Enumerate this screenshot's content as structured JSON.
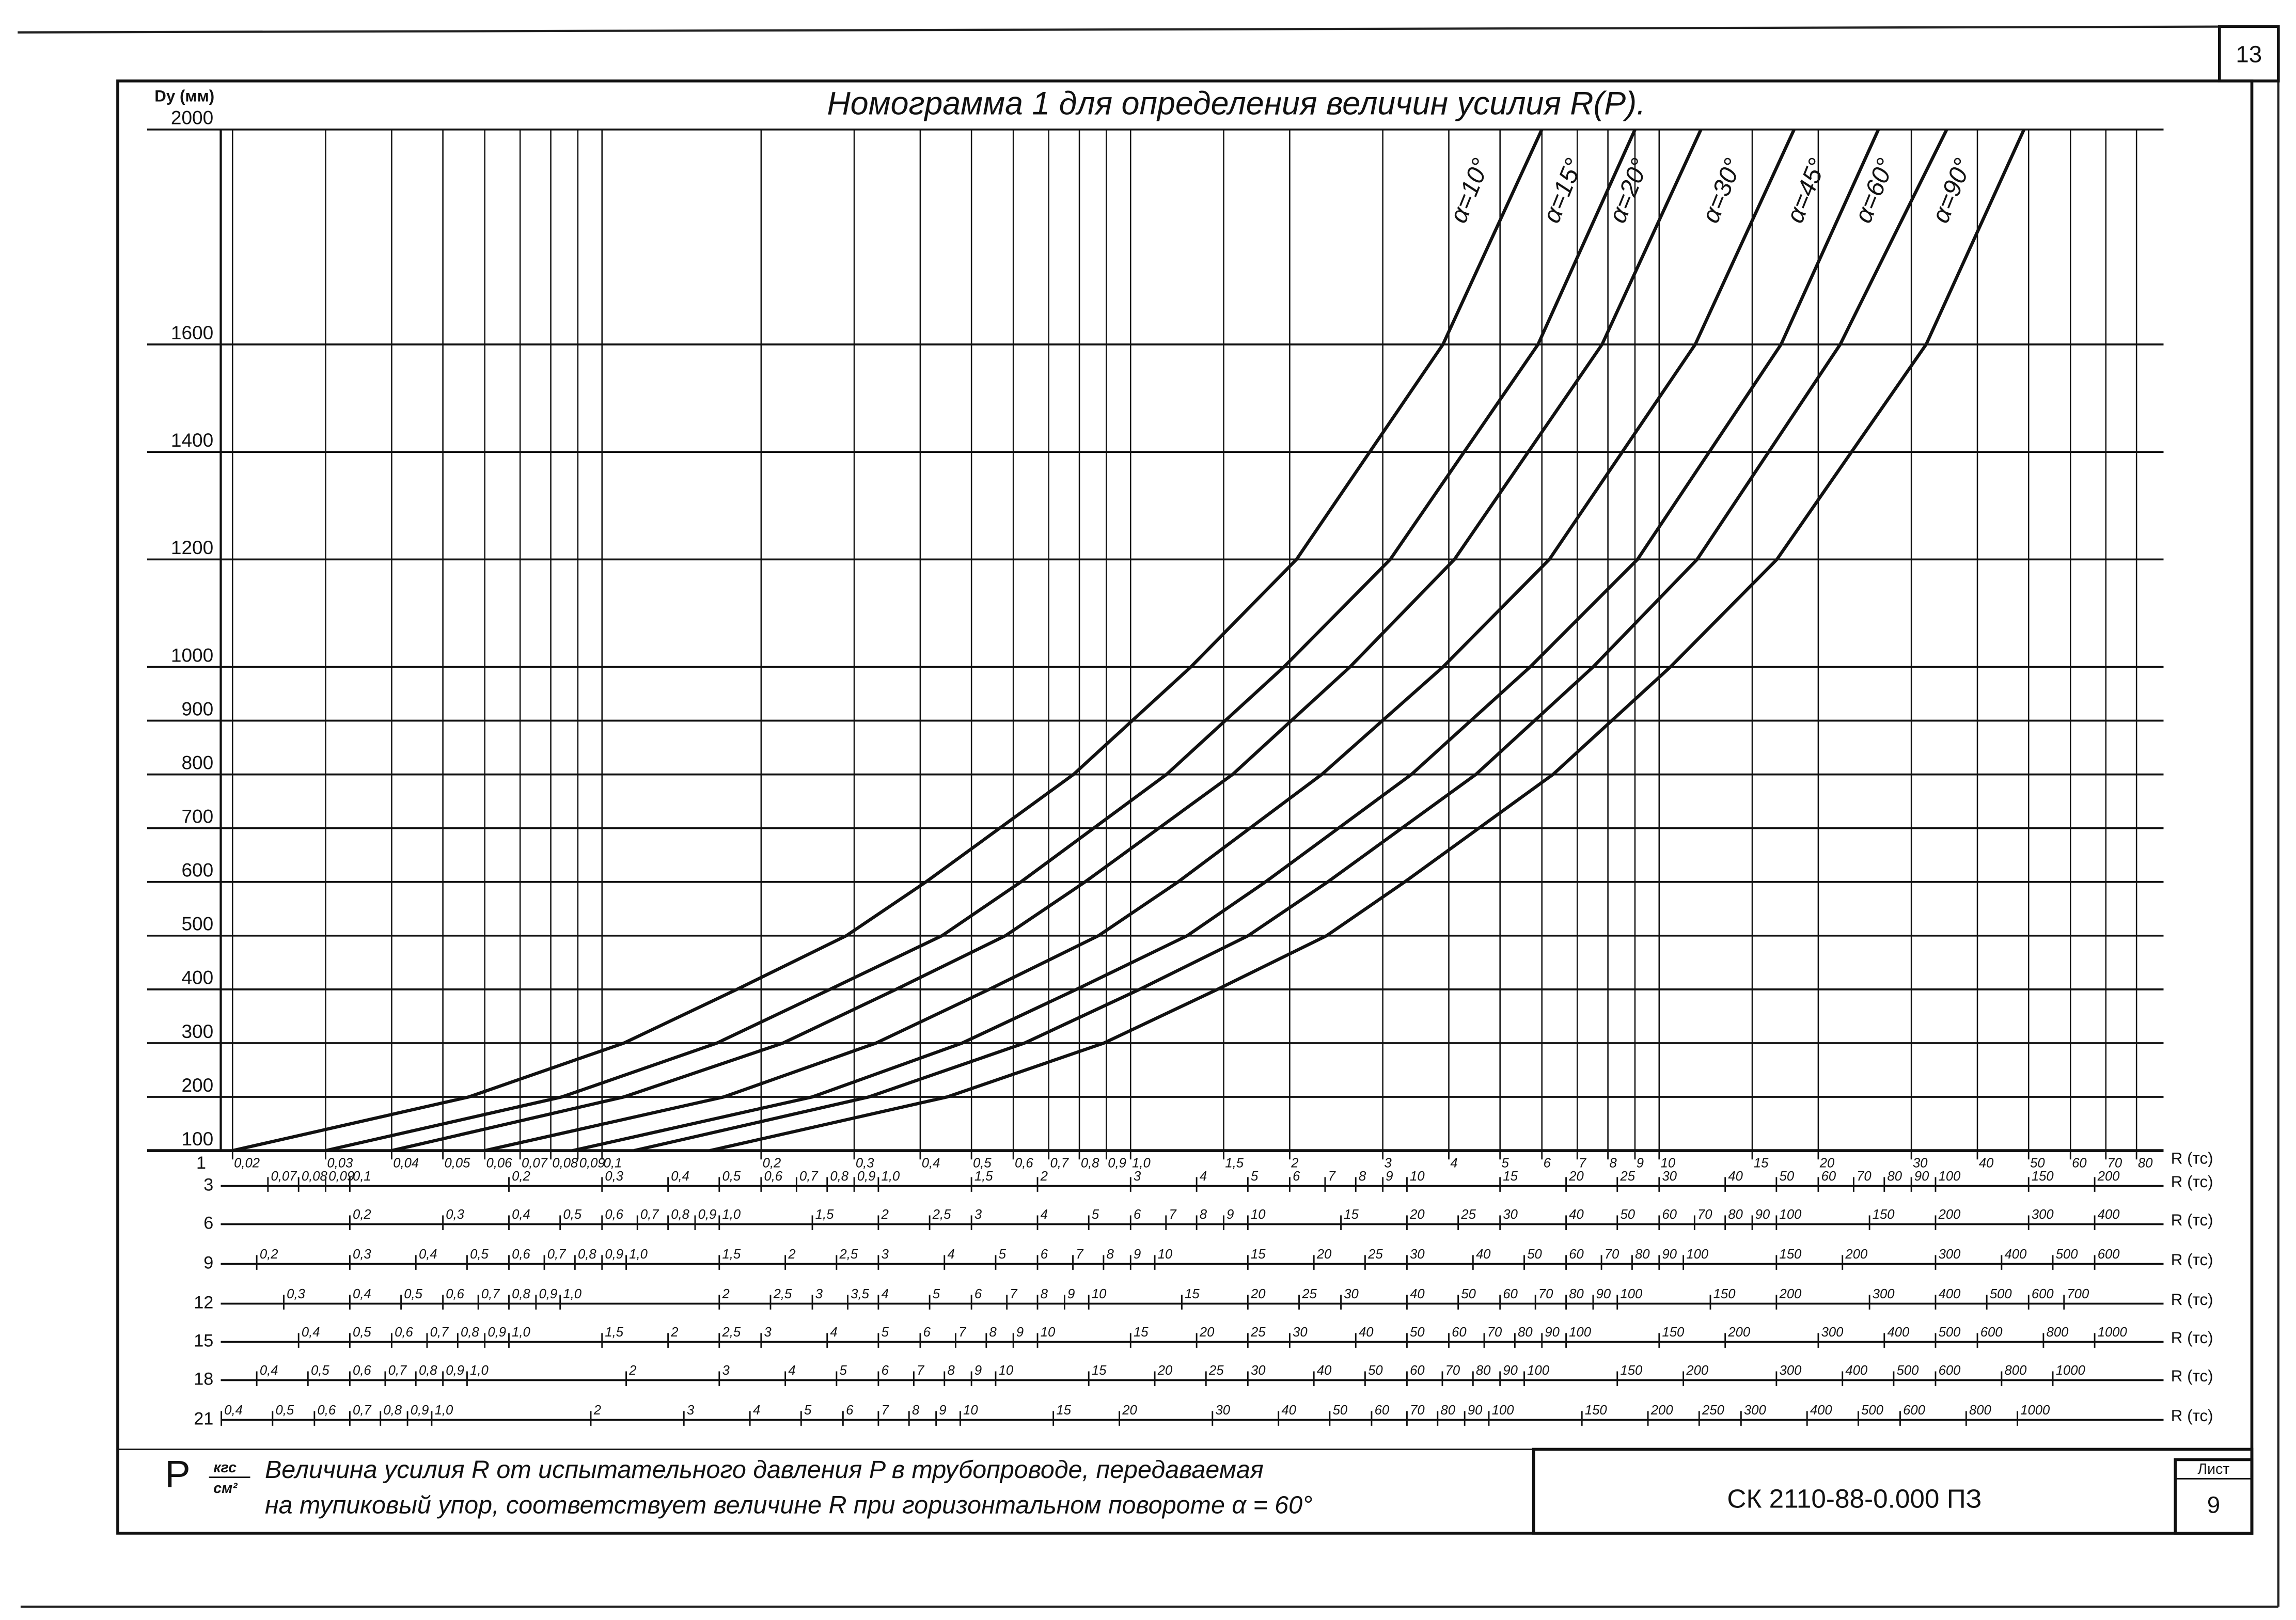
{
  "page_number": 13,
  "stamp": {
    "code": "СК 2110-88-0.000 ПЗ",
    "sheet_label": "Лист",
    "sheet": 9
  },
  "chart_data": {
    "type": "line",
    "title": "Номограмма 1 для определения величин усилия R(P).",
    "y_label": "Dy (мм)",
    "ylim": [
      100,
      2000
    ],
    "yticks": [
      100,
      200,
      300,
      400,
      500,
      600,
      700,
      800,
      900,
      1000,
      1200,
      1400,
      1600,
      2000
    ],
    "xscale": "log",
    "xlim": [
      0.019,
      90
    ],
    "grid": true,
    "color": "#111111",
    "x_pressure": 1,
    "xticks": [
      {
        "value": 0.02,
        "label": "0,02"
      },
      {
        "value": 0.03,
        "label": "0,03"
      },
      {
        "value": 0.04,
        "label": "0,04"
      },
      {
        "value": 0.05,
        "label": "0,05"
      },
      {
        "value": 0.06,
        "label": "0,06"
      },
      {
        "value": 0.07,
        "label": "0,07"
      },
      {
        "value": 0.08,
        "label": "0,08"
      },
      {
        "value": 0.09,
        "label": "0,09"
      },
      {
        "value": 0.1,
        "label": "0,1"
      },
      {
        "value": 0.2,
        "label": "0,2"
      },
      {
        "value": 0.3,
        "label": "0,3"
      },
      {
        "value": 0.4,
        "label": "0,4"
      },
      {
        "value": 0.5,
        "label": "0,5"
      },
      {
        "value": 0.6,
        "label": "0,6"
      },
      {
        "value": 0.7,
        "label": "0,7"
      },
      {
        "value": 0.8,
        "label": "0,8"
      },
      {
        "value": 0.9,
        "label": "0,9"
      },
      {
        "value": 1,
        "label": "1,0"
      },
      {
        "value": 1.5,
        "label": "1,5"
      },
      2,
      3,
      4,
      5,
      6,
      7,
      8,
      9,
      10,
      15,
      20,
      30,
      40,
      50,
      60,
      70,
      80
    ],
    "series": [
      {
        "name": "α=10°",
        "x": [
          0.02,
          0.056,
          0.11,
          0.18,
          0.29,
          0.41,
          0.78,
          1.3,
          2.06,
          3.9,
          6.0
        ],
        "values": [
          100,
          200,
          300,
          400,
          500,
          600,
          800,
          1000,
          1200,
          1600,
          2000
        ]
      },
      {
        "name": "α=15°",
        "x": [
          0.03,
          0.084,
          0.165,
          0.27,
          0.44,
          0.62,
          1.17,
          1.95,
          3.1,
          5.9,
          9.0
        ],
        "values": [
          100,
          200,
          300,
          400,
          500,
          600,
          800,
          1000,
          1200,
          1600,
          2000
        ]
      },
      {
        "name": "α=20°",
        "x": [
          0.04,
          0.11,
          0.22,
          0.36,
          0.58,
          0.82,
          1.56,
          2.6,
          4.1,
          7.8,
          12
        ],
        "values": [
          100,
          200,
          300,
          400,
          500,
          600,
          800,
          1000,
          1200,
          1600,
          2000
        ]
      },
      {
        "name": "α=30°",
        "x": [
          0.06,
          0.17,
          0.33,
          0.54,
          0.87,
          1.23,
          2.3,
          3.9,
          6.2,
          11.7,
          18
        ],
        "values": [
          100,
          200,
          300,
          400,
          500,
          600,
          800,
          1000,
          1200,
          1600,
          2000
        ]
      },
      {
        "name": "α=45°",
        "x": [
          0.088,
          0.25,
          0.48,
          0.79,
          1.28,
          1.8,
          3.4,
          5.7,
          9.1,
          17,
          26
        ],
        "values": [
          100,
          200,
          300,
          400,
          500,
          600,
          800,
          1000,
          1200,
          1600,
          2000
        ]
      },
      {
        "name": "α=60°",
        "x": [
          0.115,
          0.32,
          0.63,
          1.04,
          1.67,
          2.36,
          4.5,
          7.5,
          11.8,
          22,
          35
        ],
        "values": [
          100,
          200,
          300,
          400,
          500,
          600,
          800,
          1000,
          1200,
          1600,
          2000
        ]
      },
      {
        "name": "α=90°",
        "x": [
          0.16,
          0.45,
          0.89,
          1.46,
          2.35,
          3.3,
          6.3,
          10.5,
          16.7,
          32,
          49
        ],
        "values": [
          100,
          200,
          300,
          400,
          500,
          600,
          800,
          1000,
          1200,
          1600,
          2000
        ]
      }
    ],
    "scale_unit": "R (тс)",
    "pressure_symbol": "P",
    "pressure_unit_num": "кгс",
    "pressure_unit_den": "см²",
    "pressure_scales": [
      {
        "p": 3,
        "ticks": [
          {
            "value": 0.07,
            "label": "0,07"
          },
          {
            "value": 0.08,
            "label": "0,08"
          },
          {
            "value": 0.09,
            "label": "0,09"
          },
          {
            "value": 0.1,
            "label": "0,1"
          },
          {
            "value": 0.2,
            "label": "0,2"
          },
          {
            "value": 0.3,
            "label": "0,3"
          },
          {
            "value": 0.4,
            "label": "0,4"
          },
          {
            "value": 0.5,
            "label": "0,5"
          },
          {
            "value": 0.6,
            "label": "0,6"
          },
          {
            "value": 0.7,
            "label": "0,7"
          },
          {
            "value": 0.8,
            "label": "0,8"
          },
          {
            "value": 0.9,
            "label": "0,9"
          },
          {
            "value": 1,
            "label": "1,0"
          },
          {
            "value": 1.5,
            "label": "1,5"
          },
          2,
          3,
          4,
          5,
          6,
          7,
          8,
          9,
          10,
          15,
          20,
          25,
          30,
          40,
          50,
          60,
          70,
          80,
          90,
          100,
          150,
          200
        ]
      },
      {
        "p": 6,
        "ticks": [
          {
            "value": 0.2,
            "label": "0,2"
          },
          {
            "value": 0.3,
            "label": "0,3"
          },
          {
            "value": 0.4,
            "label": "0,4"
          },
          {
            "value": 0.5,
            "label": "0,5"
          },
          {
            "value": 0.6,
            "label": "0,6"
          },
          {
            "value": 0.7,
            "label": "0,7"
          },
          {
            "value": 0.8,
            "label": "0,8"
          },
          {
            "value": 0.9,
            "label": "0,9"
          },
          {
            "value": 1,
            "label": "1,0"
          },
          {
            "value": 1.5,
            "label": "1,5"
          },
          2,
          {
            "value": 2.5,
            "label": "2,5"
          },
          3,
          4,
          5,
          6,
          7,
          8,
          9,
          10,
          15,
          20,
          25,
          30,
          40,
          50,
          60,
          70,
          80,
          90,
          100,
          150,
          200,
          300,
          400
        ]
      },
      {
        "p": 9,
        "ticks": [
          {
            "value": 0.2,
            "label": "0,2"
          },
          {
            "value": 0.3,
            "label": "0,3"
          },
          {
            "value": 0.4,
            "label": "0,4"
          },
          {
            "value": 0.5,
            "label": "0,5"
          },
          {
            "value": 0.6,
            "label": "0,6"
          },
          {
            "value": 0.7,
            "label": "0,7"
          },
          {
            "value": 0.8,
            "label": "0,8"
          },
          {
            "value": 0.9,
            "label": "0,9"
          },
          {
            "value": 1,
            "label": "1,0"
          },
          {
            "value": 1.5,
            "label": "1,5"
          },
          2,
          {
            "value": 2.5,
            "label": "2,5"
          },
          3,
          4,
          5,
          6,
          7,
          8,
          9,
          10,
          15,
          20,
          25,
          30,
          40,
          50,
          60,
          70,
          80,
          90,
          100,
          150,
          200,
          300,
          400,
          500,
          600
        ]
      },
      {
        "p": 12,
        "ticks": [
          {
            "value": 0.3,
            "label": "0,3"
          },
          {
            "value": 0.4,
            "label": "0,4"
          },
          {
            "value": 0.5,
            "label": "0,5"
          },
          {
            "value": 0.6,
            "label": "0,6"
          },
          {
            "value": 0.7,
            "label": "0,7"
          },
          {
            "value": 0.8,
            "label": "0,8"
          },
          {
            "value": 0.9,
            "label": "0,9"
          },
          {
            "value": 1,
            "label": "1,0"
          },
          2,
          {
            "value": 2.5,
            "label": "2,5"
          },
          3,
          {
            "value": 3.5,
            "label": "3,5"
          },
          4,
          5,
          6,
          7,
          8,
          9,
          10,
          15,
          20,
          25,
          30,
          40,
          50,
          60,
          70,
          80,
          90,
          100,
          150,
          200,
          300,
          400,
          500,
          600,
          700
        ]
      },
      {
        "p": 15,
        "ticks": [
          {
            "value": 0.4,
            "label": "0,4"
          },
          {
            "value": 0.5,
            "label": "0,5"
          },
          {
            "value": 0.6,
            "label": "0,6"
          },
          {
            "value": 0.7,
            "label": "0,7"
          },
          {
            "value": 0.8,
            "label": "0,8"
          },
          {
            "value": 0.9,
            "label": "0,9"
          },
          {
            "value": 1,
            "label": "1,0"
          },
          {
            "value": 1.5,
            "label": "1,5"
          },
          2,
          {
            "value": 2.5,
            "label": "2,5"
          },
          3,
          4,
          5,
          6,
          7,
          8,
          9,
          10,
          15,
          20,
          25,
          30,
          40,
          50,
          60,
          70,
          80,
          90,
          100,
          150,
          200,
          300,
          400,
          500,
          600,
          800,
          1000
        ]
      },
      {
        "p": 18,
        "ticks": [
          {
            "value": 0.4,
            "label": "0,4"
          },
          {
            "value": 0.5,
            "label": "0,5"
          },
          {
            "value": 0.6,
            "label": "0,6"
          },
          {
            "value": 0.7,
            "label": "0,7"
          },
          {
            "value": 0.8,
            "label": "0,8"
          },
          {
            "value": 0.9,
            "label": "0,9"
          },
          {
            "value": 1,
            "label": "1,0"
          },
          2,
          3,
          4,
          5,
          6,
          7,
          8,
          9,
          10,
          15,
          20,
          25,
          30,
          40,
          50,
          60,
          70,
          80,
          90,
          100,
          150,
          200,
          300,
          400,
          500,
          600,
          800,
          1000
        ]
      },
      {
        "p": 21,
        "ticks": [
          {
            "value": 0.4,
            "label": "0,4"
          },
          {
            "value": 0.5,
            "label": "0,5"
          },
          {
            "value": 0.6,
            "label": "0,6"
          },
          {
            "value": 0.7,
            "label": "0,7"
          },
          {
            "value": 0.8,
            "label": "0,8"
          },
          {
            "value": 0.9,
            "label": "0,9"
          },
          {
            "value": 1,
            "label": "1,0"
          },
          2,
          3,
          4,
          5,
          6,
          7,
          8,
          9,
          10,
          15,
          20,
          30,
          40,
          50,
          60,
          70,
          80,
          90,
          100,
          150,
          200,
          250,
          300,
          400,
          500,
          600,
          800,
          1000
        ]
      }
    ],
    "note_lines": [
      "Величина усилия R от испытательного давления P в трубопроводе, передаваемая",
      "на тупиковый упор, соответствует величине R при горизонтальном повороте α = 60°"
    ]
  }
}
